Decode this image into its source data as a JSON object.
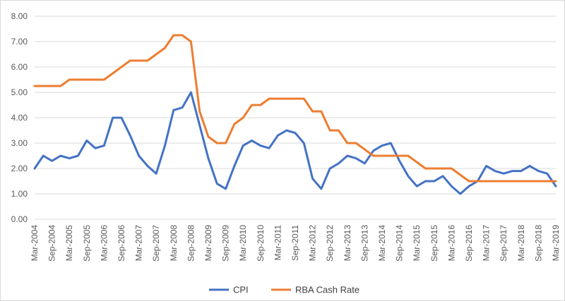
{
  "chart_data": {
    "type": "line",
    "title": "",
    "xlabel": "",
    "ylabel": "",
    "ylim": [
      0,
      8
    ],
    "ytick_labels": [
      "0.00",
      "1.00",
      "2.00",
      "3.00",
      "4.00",
      "5.00",
      "6.00",
      "7.00",
      "8.00"
    ],
    "x_tick_labels": [
      "Mar-2004",
      "Sep-2004",
      "Mar-2005",
      "Sep-2005",
      "Mar-2006",
      "Sep-2006",
      "Mar-2007",
      "Sep-2007",
      "Mar-2008",
      "Sep-2008",
      "Mar-2009",
      "Sep-2009",
      "Mar-2010",
      "Sep-2010",
      "Mar-2011",
      "Sep-2011",
      "Mar-2012",
      "Sep-2012",
      "Mar-2013",
      "Sep-2013",
      "Mar-2014",
      "Sep-2014",
      "Mar-2015",
      "Sep-2015",
      "Mar-2016",
      "Sep-2016",
      "Mar-2017",
      "Sep-2017",
      "Mar-2018",
      "Sep-2018",
      "Mar-2019"
    ],
    "grid": "horizontal",
    "legend_position": "bottom",
    "series": [
      {
        "name": "CPI",
        "color": "#4472C4",
        "values": [
          2.0,
          2.5,
          2.3,
          2.5,
          2.4,
          2.5,
          3.1,
          2.8,
          2.9,
          4.0,
          4.0,
          3.3,
          2.5,
          2.1,
          1.8,
          2.9,
          4.3,
          4.4,
          5.0,
          3.7,
          2.4,
          1.4,
          1.2,
          2.1,
          2.9,
          3.1,
          2.9,
          2.8,
          3.3,
          3.5,
          3.4,
          3.0,
          1.6,
          1.2,
          2.0,
          2.2,
          2.5,
          2.4,
          2.2,
          2.7,
          2.9,
          3.0,
          2.3,
          1.7,
          1.3,
          1.5,
          1.5,
          1.7,
          1.3,
          1.0,
          1.3,
          1.5,
          2.1,
          1.9,
          1.8,
          1.9,
          1.9,
          2.1,
          1.9,
          1.8,
          1.3
        ]
      },
      {
        "name": "RBA Cash Rate",
        "color": "#ED7D31",
        "values": [
          5.25,
          5.25,
          5.25,
          5.25,
          5.5,
          5.5,
          5.5,
          5.5,
          5.5,
          5.75,
          6.0,
          6.25,
          6.25,
          6.25,
          6.5,
          6.75,
          7.25,
          7.25,
          7.0,
          4.25,
          3.25,
          3.0,
          3.0,
          3.75,
          4.0,
          4.5,
          4.5,
          4.75,
          4.75,
          4.75,
          4.75,
          4.75,
          4.25,
          4.25,
          3.5,
          3.5,
          3.0,
          3.0,
          2.75,
          2.5,
          2.5,
          2.5,
          2.5,
          2.5,
          2.25,
          2.0,
          2.0,
          2.0,
          2.0,
          1.75,
          1.5,
          1.5,
          1.5,
          1.5,
          1.5,
          1.5,
          1.5,
          1.5,
          1.5,
          1.5,
          1.5
        ]
      }
    ]
  }
}
